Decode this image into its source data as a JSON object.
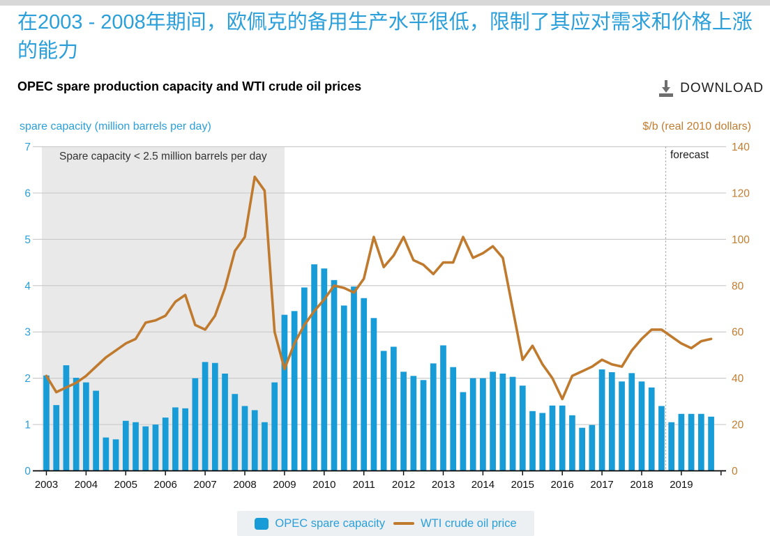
{
  "header": {
    "title_zh": "在2003 - 2008年期间，欧佩克的备用生产水平很低，限制了其应对需求和价格上涨的能力",
    "subtitle": "OPEC spare production capacity and WTI crude oil prices",
    "download_label": "DOWNLOAD"
  },
  "axes": {
    "left_title": "spare capacity (million barrels per day)",
    "right_title": "$/b (real 2010 dollars)",
    "left_ticks": [
      0,
      1,
      2,
      3,
      4,
      5,
      6,
      7
    ],
    "right_ticks": [
      0,
      20,
      40,
      60,
      80,
      100,
      120,
      140
    ],
    "x_years": [
      "2003",
      "2004",
      "2005",
      "2006",
      "2007",
      "2008",
      "2009",
      "2010",
      "2011",
      "2012",
      "2013",
      "2014",
      "2015",
      "2016",
      "2017",
      "2018",
      "2019"
    ]
  },
  "annotations": {
    "shaded_label": "Spare capacity < 2.5 million barrels per day",
    "forecast_label": "forecast"
  },
  "legend": {
    "bar_label": "OPEC spare capacity",
    "line_label": "WTI crude oil price"
  },
  "colors": {
    "bar": "#189cd8",
    "line": "#bf7a2e",
    "blue_text": "#2b9fd9",
    "orange_text": "#c07c2f",
    "shade": "#e9e9e9",
    "grid": "#cbcbcb",
    "axis": "#000000",
    "forecast_divider": "#9a9a9a",
    "legend_bg": "#edf0f3"
  },
  "chart_data": {
    "type": "bar",
    "title": "OPEC spare production capacity and WTI crude oil prices",
    "frequency": "quarterly",
    "quarters_per_year": 4,
    "categories": [
      "2003",
      "2004",
      "2005",
      "2006",
      "2007",
      "2008",
      "2009",
      "2010",
      "2011",
      "2012",
      "2013",
      "2014",
      "2015",
      "2016",
      "2017",
      "2018",
      "2019"
    ],
    "xlabel": "",
    "ylabel_left": "spare capacity (million barrels per day)",
    "ylim_left": [
      0,
      7
    ],
    "ylabel_right": "$/b (real 2010 dollars)",
    "ylim_right": [
      0,
      140
    ],
    "grid": true,
    "legend_position": "bottom",
    "shaded_region": {
      "from": "2003 Q1",
      "to": "2008 Q4",
      "label": "Spare capacity < 2.5 million barrels per day"
    },
    "forecast_start": "2018 Q4",
    "series": [
      {
        "name": "OPEC spare capacity",
        "type": "bar",
        "axis": "left",
        "values": [
          2.06,
          1.42,
          2.28,
          2.01,
          1.91,
          1.73,
          0.72,
          0.68,
          1.08,
          1.05,
          0.96,
          1.0,
          1.15,
          1.37,
          1.35,
          2.0,
          2.35,
          2.33,
          2.1,
          1.66,
          1.4,
          1.31,
          1.05,
          1.91,
          3.37,
          3.45,
          3.96,
          4.46,
          4.37,
          4.12,
          3.57,
          3.98,
          3.73,
          3.3,
          2.59,
          2.68,
          2.14,
          2.05,
          1.96,
          2.32,
          2.71,
          2.24,
          1.7,
          2.0,
          2.0,
          2.14,
          2.1,
          2.03,
          1.84,
          1.29,
          1.25,
          1.41,
          1.41,
          1.2,
          0.93,
          0.99,
          2.19,
          2.13,
          1.93,
          2.11,
          1.93,
          1.8,
          1.4,
          1.05,
          1.23,
          1.23,
          1.23,
          1.17
        ]
      },
      {
        "name": "WTI crude oil price",
        "type": "line",
        "axis": "right",
        "values": [
          41,
          34,
          36,
          38,
          41,
          45,
          49,
          52,
          55,
          57,
          64,
          65,
          67,
          73,
          76,
          63,
          61,
          67,
          79,
          95,
          101,
          127,
          121,
          60,
          44,
          55,
          63,
          69,
          74,
          80,
          79,
          77,
          83,
          101,
          88,
          93,
          101,
          91,
          89,
          85,
          90,
          90,
          101,
          92,
          94,
          97,
          92,
          70,
          48,
          54,
          46,
          40,
          31,
          41,
          43,
          45,
          48,
          46,
          45,
          52,
          57,
          61,
          61,
          58,
          55,
          53,
          56,
          57
        ]
      }
    ]
  }
}
